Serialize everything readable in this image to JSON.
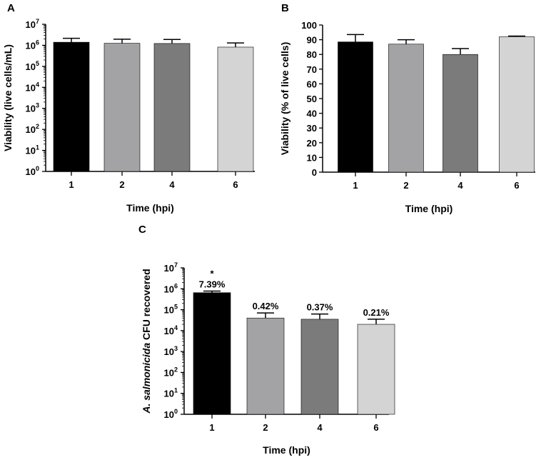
{
  "figure": {
    "panel_labels": [
      "A",
      "B",
      "C"
    ]
  },
  "chart_data": [
    {
      "panel": "A",
      "type": "bar",
      "scale": "log10",
      "categories": [
        "1",
        "2",
        "4",
        "6"
      ],
      "values": [
        1400000,
        1250000,
        1220000,
        820000
      ],
      "error_upper": [
        2150000,
        1950000,
        1900000,
        1300000
      ],
      "bar_colors": [
        "#000000",
        "#a3a3a6",
        "#7b7b7b",
        "#d4d4d4"
      ],
      "xlabel": "Time (hpi)",
      "ylabel": "Viability (live cells/mL)",
      "ylim_exp": [
        0,
        7
      ],
      "ytick_base": "10",
      "ytick_exponents": [
        "0",
        "1",
        "2",
        "3",
        "4",
        "5",
        "6",
        "7"
      ],
      "data_labels": [],
      "annotations": []
    },
    {
      "panel": "B",
      "type": "bar",
      "scale": "linear",
      "categories": [
        "1",
        "2",
        "4",
        "6"
      ],
      "values": [
        88.5,
        87,
        80,
        92
      ],
      "error_upper": [
        93.5,
        90,
        84,
        92.5
      ],
      "bar_colors": [
        "#000000",
        "#a3a3a6",
        "#7b7b7b",
        "#d4d4d4"
      ],
      "xlabel": "Time (hpi)",
      "ylabel": "Viability (% of live cells)",
      "ylim": [
        0,
        100
      ],
      "yticks": [
        "0",
        "10",
        "20",
        "30",
        "40",
        "50",
        "60",
        "70",
        "80",
        "90",
        "100"
      ],
      "data_labels": [],
      "annotations": []
    },
    {
      "panel": "C",
      "type": "bar",
      "scale": "log10",
      "categories": [
        "1",
        "2",
        "4",
        "6"
      ],
      "values": [
        650000,
        40000,
        35000,
        20000
      ],
      "error_upper": [
        780000,
        70000,
        62000,
        35000
      ],
      "bar_colors": [
        "#000000",
        "#a3a3a6",
        "#7b7b7b",
        "#d4d4d4"
      ],
      "xlabel": "Time (hpi)",
      "ylabel_italic": "A. salmonicida",
      "ylabel_rest": " CFU recovered",
      "ylim_exp": [
        0,
        7
      ],
      "ytick_base": "10",
      "ytick_exponents": [
        "0",
        "1",
        "2",
        "3",
        "4",
        "5",
        "6",
        "7"
      ],
      "data_labels": [
        "7.39%",
        "0.42%",
        "0.37%",
        "0.21%"
      ],
      "annotations": [
        "*",
        "",
        "",
        ""
      ]
    }
  ]
}
